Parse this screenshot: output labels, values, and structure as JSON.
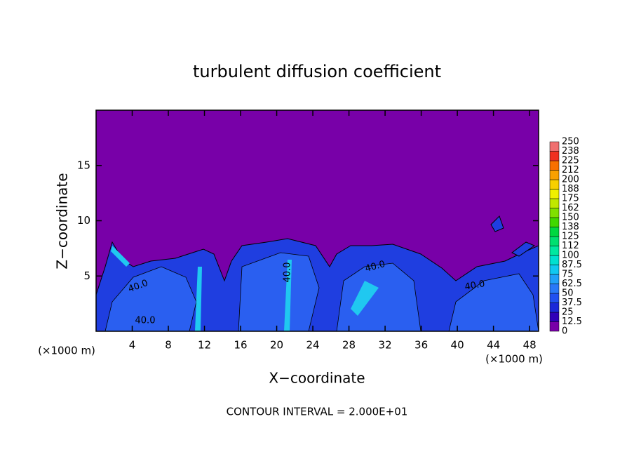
{
  "chart_data": {
    "type": "contour",
    "title": "turbulent diffusion coefficient",
    "xlabel": "X−coordinate",
    "ylabel": "Z−coordinate",
    "x_unit_left": "(×1000 m)",
    "x_unit_right": "(×1000 m)",
    "footer": "CONTOUR INTERVAL = 2.000E+01",
    "xlim": [
      0,
      49
    ],
    "xticks": [
      4,
      8,
      12,
      16,
      20,
      24,
      28,
      32,
      36,
      40,
      44,
      48
    ],
    "ylim": [
      0,
      20
    ],
    "yticks": [
      5,
      10,
      15
    ],
    "contour_labels": [
      "40.0",
      "40.0",
      "40.0",
      "40.0",
      "40.0"
    ],
    "colorbar_ticks": [
      0,
      12.5,
      25,
      37.5,
      50,
      62.5,
      75,
      87.5,
      100,
      {
        "value": 112.5,
        "label": "112"
      },
      125,
      {
        "value": 137.5,
        "label": "138"
      },
      150,
      {
        "value": 162.5,
        "label": "162"
      },
      175,
      {
        "value": 187.5,
        "label": "188"
      },
      200,
      {
        "value": 212.5,
        "label": "212"
      },
      225,
      {
        "value": 237.5,
        "label": "238"
      },
      250
    ],
    "colorbar_colors": [
      "#7800a8",
      "#3000b8",
      "#1a28d8",
      "#2050f0",
      "#2878f8",
      "#20a0f8",
      "#10c8f0",
      "#00e0d0",
      "#00e8a0",
      "#00e070",
      "#00d840",
      "#40d800",
      "#80e000",
      "#c0e800",
      "#f0f000",
      "#f8d000",
      "#f8a000",
      "#f87000",
      "#f03020",
      "#f07070"
    ]
  }
}
